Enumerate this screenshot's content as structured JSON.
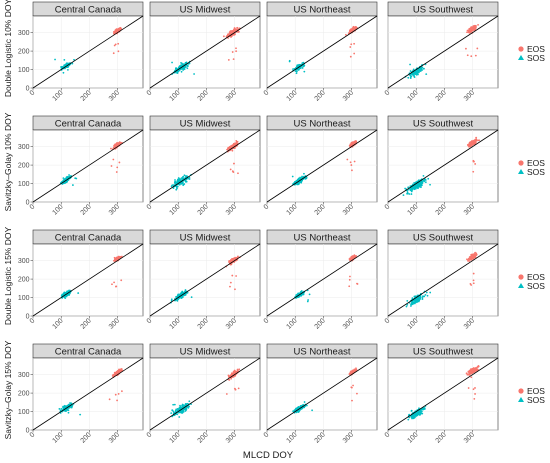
{
  "chart_data": {
    "type": "scatter",
    "regions": [
      "Central Canada",
      "US Midwest",
      "US Northeast",
      "US Southwest"
    ],
    "rows": [
      {
        "ylabel": "Double Logistic 10% DOY"
      },
      {
        "ylabel": "Savitzky–Golay 10% DOY"
      },
      {
        "ylabel": "Double Logistic 15% DOY"
      },
      {
        "ylabel": "Savitzky–Golay 15% DOY"
      }
    ],
    "xlabel": "MLCD DOY",
    "xlim": [
      0,
      390
    ],
    "ylim": [
      0,
      390
    ],
    "x_ticks": [
      0,
      100,
      200,
      300
    ],
    "y_ticks": [
      0,
      100,
      200,
      300
    ],
    "reference_line": "y = x",
    "legend": {
      "position": "right",
      "entries": [
        {
          "name": "EOS",
          "color": "#F8766D"
        },
        {
          "name": "SOS",
          "color": "#00BFC4"
        }
      ]
    },
    "series": [
      {
        "name": "EOS",
        "color": "#F8766D",
        "cluster_center": {
          "Central Canada": [
            300,
            310
          ],
          "US Midwest": [
            295,
            300
          ],
          "US Northeast": [
            305,
            315
          ],
          "US Southwest": [
            300,
            320
          ]
        }
      },
      {
        "name": "SOS",
        "color": "#00BFC4",
        "cluster_center": {
          "Central Canada": [
            118,
            120
          ],
          "US Midwest": [
            110,
            110
          ],
          "US Northeast": [
            115,
            115
          ],
          "US Southwest": [
            100,
            90
          ]
        }
      }
    ]
  }
}
